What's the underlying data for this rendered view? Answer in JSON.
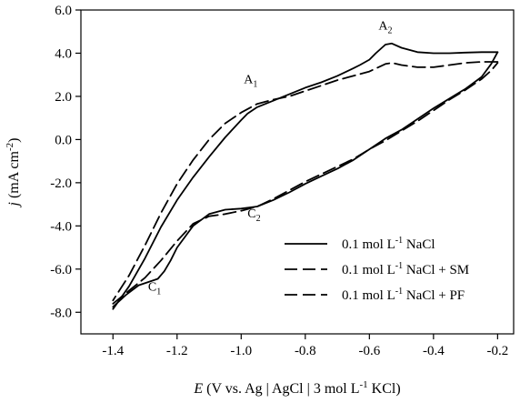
{
  "chart_data": {
    "type": "line",
    "x_range": [
      -1.5,
      -0.15
    ],
    "y_range": [
      -9.0,
      6.0
    ],
    "ylim": [
      -9.0,
      6.0
    ],
    "x_ticks": [
      "-1.4",
      "-1.2",
      "-1.0",
      "-0.8",
      "-0.6",
      "-0.4",
      "-0.2"
    ],
    "x_tick_values": [
      -1.4,
      -1.2,
      -1.0,
      -0.8,
      -0.6,
      -0.4,
      -0.2
    ],
    "y_ticks": [
      "6.0",
      "4.0",
      "2.0",
      "0.0",
      "-2.0",
      "-4.0",
      "-6.0",
      "-8.0"
    ],
    "y_tick_values": [
      6.0,
      4.0,
      2.0,
      0.0,
      -2.0,
      -4.0,
      -6.0,
      -8.0
    ],
    "xlabel": {
      "var": "E",
      "rest": " (V vs. Ag | AgCl | 3 mol L",
      "sup": "-1",
      "end": " KCl)"
    },
    "ylabel": {
      "var": "j",
      "rest": " (mA cm",
      "sup": "-2",
      "end": ")"
    },
    "grid": false,
    "legend_position": "lower-right",
    "legend": [
      {
        "pre": "0.1 mol L",
        "sup": "-1",
        "post": " NaCl",
        "style": "solid"
      },
      {
        "pre": "0.1 mol L",
        "sup": "-1",
        "post": " NaCl + SM",
        "style": "dashed"
      },
      {
        "pre": "0.1 mol L",
        "sup": "-1",
        "post": " NaCl + PF",
        "style": "dashed"
      }
    ],
    "annotations": [
      {
        "label": "A",
        "sub": "1",
        "x": -0.97,
        "y": 2.6
      },
      {
        "label": "A",
        "sub": "2",
        "x": -0.55,
        "y": 5.1
      },
      {
        "label": "C",
        "sub": "1",
        "x": -1.27,
        "y": -7.0
      },
      {
        "label": "C",
        "sub": "2",
        "x": -0.96,
        "y": -3.6
      }
    ],
    "series": [
      {
        "style": "solid",
        "x": [
          -0.2,
          -0.25,
          -0.3,
          -0.35,
          -0.4,
          -0.45,
          -0.5,
          -0.53,
          -0.55,
          -0.58,
          -0.6,
          -0.63,
          -0.65,
          -0.7,
          -0.75,
          -0.8,
          -0.85,
          -0.9,
          -0.95,
          -0.98,
          -1.0,
          -1.05,
          -1.1,
          -1.15,
          -1.2,
          -1.25,
          -1.3,
          -1.35,
          -1.4
        ],
        "y": [
          4.05,
          4.05,
          4.03,
          4.0,
          4.0,
          4.05,
          4.25,
          4.45,
          4.4,
          4.0,
          3.7,
          3.45,
          3.3,
          2.95,
          2.65,
          2.4,
          2.1,
          1.8,
          1.5,
          1.2,
          0.9,
          0.1,
          -0.8,
          -1.75,
          -2.8,
          -4.05,
          -5.5,
          -6.8,
          -7.85
        ]
      },
      {
        "style": "solid",
        "x": [
          -1.4,
          -1.36,
          -1.32,
          -1.28,
          -1.26,
          -1.24,
          -1.22,
          -1.2,
          -1.15,
          -1.1,
          -1.05,
          -1.0,
          -0.95,
          -0.9,
          -0.85,
          -0.8,
          -0.75,
          -0.7,
          -0.65,
          -0.6,
          -0.55,
          -0.5,
          -0.45,
          -0.4,
          -0.35,
          -0.3,
          -0.25,
          -0.22,
          -0.2
        ],
        "y": [
          -7.75,
          -7.2,
          -6.75,
          -6.55,
          -6.45,
          -6.1,
          -5.6,
          -5.0,
          -4.0,
          -3.45,
          -3.25,
          -3.2,
          -3.1,
          -2.8,
          -2.45,
          -2.05,
          -1.7,
          -1.35,
          -0.95,
          -0.45,
          0.05,
          0.45,
          0.95,
          1.45,
          1.9,
          2.35,
          2.9,
          3.5,
          4.05
        ]
      },
      {
        "style": "dashed",
        "x": [
          -0.2,
          -0.25,
          -0.3,
          -0.35,
          -0.4,
          -0.45,
          -0.5,
          -0.53,
          -0.55,
          -0.6,
          -0.65,
          -0.7,
          -0.75,
          -0.8,
          -0.85,
          -0.9,
          -0.95,
          -1.0,
          -1.05,
          -1.1,
          -1.15,
          -1.2,
          -1.25,
          -1.3,
          -1.35,
          -1.4
        ],
        "y": [
          3.6,
          3.6,
          3.55,
          3.45,
          3.35,
          3.35,
          3.45,
          3.55,
          3.5,
          3.15,
          2.95,
          2.75,
          2.5,
          2.25,
          2.0,
          1.85,
          1.65,
          1.25,
          0.75,
          0.0,
          -0.95,
          -2.05,
          -3.4,
          -4.9,
          -6.3,
          -7.45
        ]
      },
      {
        "style": "dashed",
        "x": [
          -1.4,
          -1.35,
          -1.3,
          -1.25,
          -1.2,
          -1.15,
          -1.1,
          -1.05,
          -1.0,
          -0.95,
          -0.9,
          -0.85,
          -0.8,
          -0.75,
          -0.7,
          -0.65,
          -0.6,
          -0.55,
          -0.5,
          -0.45,
          -0.4,
          -0.35,
          -0.3,
          -0.25,
          -0.22,
          -0.2
        ],
        "y": [
          -7.6,
          -7.0,
          -6.4,
          -5.6,
          -4.7,
          -3.9,
          -3.55,
          -3.45,
          -3.3,
          -3.1,
          -2.75,
          -2.35,
          -1.95,
          -1.6,
          -1.25,
          -0.9,
          -0.45,
          -0.05,
          0.4,
          0.85,
          1.35,
          1.85,
          2.3,
          2.8,
          3.2,
          3.55
        ]
      }
    ]
  }
}
